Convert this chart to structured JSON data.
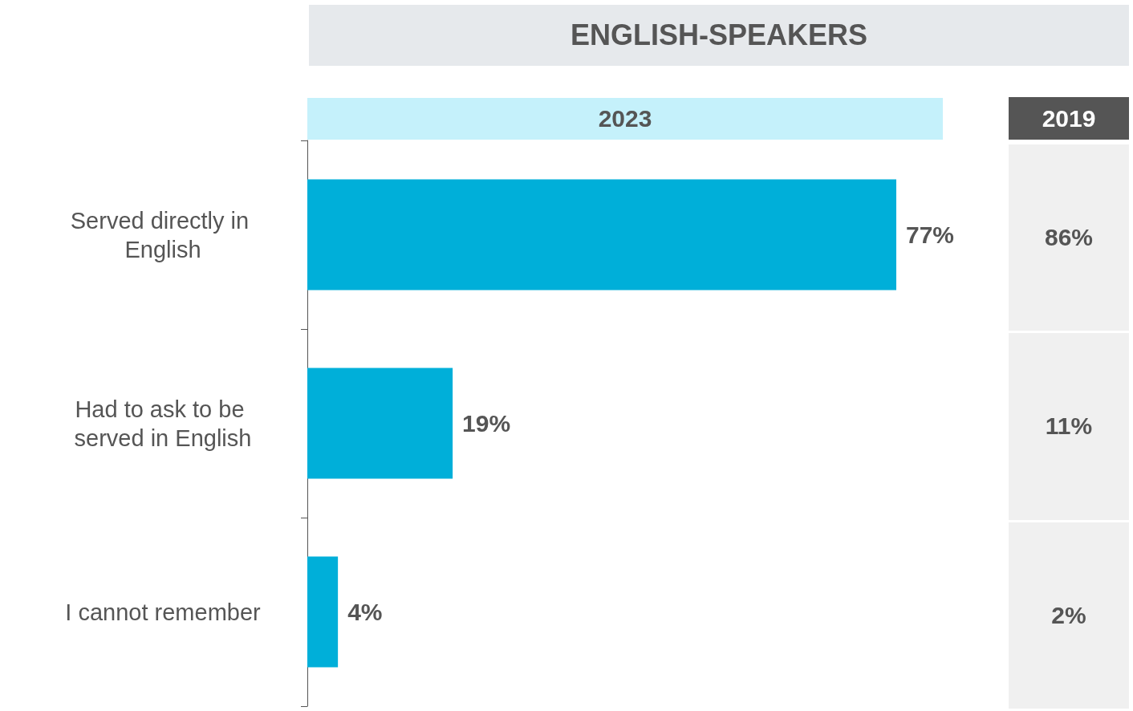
{
  "chart_data": [
    {
      "type": "bar",
      "orientation": "horizontal",
      "title": "ENGLISH-SPEAKERS",
      "categories": [
        "Served directly in English",
        "Had to ask to be served in English",
        "I cannot remember"
      ],
      "series": [
        {
          "name": "2023",
          "color": "#00afd9",
          "values": [
            77,
            19,
            4
          ],
          "value_labels": [
            "77%",
            "19%",
            "4%"
          ]
        }
      ],
      "grid": false,
      "legend": false
    },
    {
      "type": "other",
      "title": "2019",
      "values": [
        86,
        11,
        2
      ],
      "value_labels": [
        "86%",
        "11%",
        "2%"
      ]
    }
  ]
}
